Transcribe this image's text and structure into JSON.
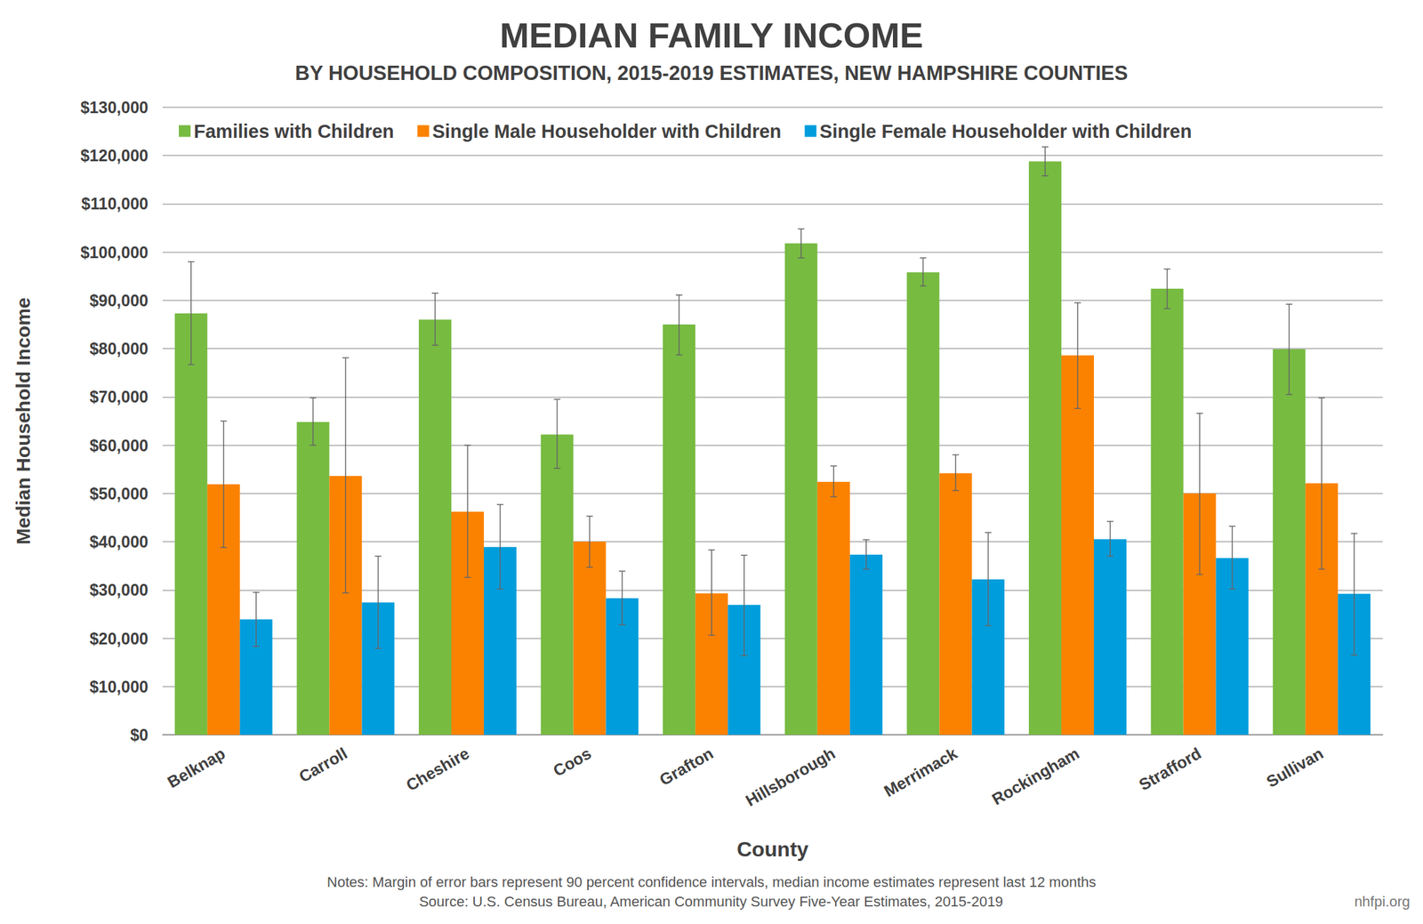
{
  "chart_data": {
    "type": "bar",
    "title": "MEDIAN FAMILY INCOME",
    "subtitle": "BY HOUSEHOLD COMPOSITION, 2015-2019 ESTIMATES, NEW HAMPSHIRE COUNTIES",
    "x_label": "County",
    "y_label": "Median Household Income",
    "notes": "Notes: Margin of error bars represent 90 percent confidence intervals, median income estimates represent last 12 months",
    "source": "Source: U.S. Census Bureau, American Community Survey Five-Year Estimates, 2015-2019",
    "credit": "nhfpi.org",
    "categories": [
      "Belknap",
      "Carroll",
      "Cheshire",
      "Coos",
      "Grafton",
      "Hillsborough",
      "Merrimack",
      "Rockingham",
      "Strafford",
      "Sullivan"
    ],
    "series": [
      {
        "name": "Families with Children",
        "color": "#77bb41",
        "values": [
          87300,
          64800,
          86000,
          62200,
          85000,
          101800,
          95800,
          118800,
          92400,
          79900
        ],
        "error_low": [
          76700,
          60000,
          80700,
          55200,
          78700,
          98800,
          93000,
          115800,
          88300,
          70500
        ],
        "error_high": [
          98000,
          69800,
          91500,
          69500,
          91100,
          104800,
          98800,
          121800,
          96500,
          89200
        ]
      },
      {
        "name": "Single Male Householder with Children",
        "color": "#fb8200",
        "values": [
          51900,
          53600,
          46200,
          40000,
          29300,
          52400,
          54200,
          78600,
          50000,
          52100
        ],
        "error_low": [
          38800,
          29400,
          32600,
          34700,
          20600,
          49300,
          50600,
          67600,
          33200,
          34300
        ],
        "error_high": [
          65000,
          78100,
          60000,
          45300,
          38300,
          55700,
          58000,
          89500,
          66600,
          69800
        ]
      },
      {
        "name": "Single Female Householder with Children",
        "color": "#009ddc",
        "values": [
          23900,
          27400,
          38900,
          28300,
          26900,
          37300,
          32200,
          40500,
          36600,
          29200
        ],
        "error_low": [
          18300,
          17900,
          30200,
          22800,
          16400,
          34300,
          22600,
          37000,
          30200,
          16500
        ],
        "error_high": [
          29500,
          37000,
          47700,
          33900,
          37200,
          40400,
          41900,
          44200,
          43200,
          41700
        ]
      }
    ],
    "ylim": [
      0,
      130000
    ],
    "yticks": [
      {
        "value": 0,
        "label": "$0"
      },
      {
        "value": 10000,
        "label": "$10,000"
      },
      {
        "value": 20000,
        "label": "$20,000"
      },
      {
        "value": 30000,
        "label": "$30,000"
      },
      {
        "value": 40000,
        "label": "$40,000"
      },
      {
        "value": 50000,
        "label": "$50,000"
      },
      {
        "value": 60000,
        "label": "$60,000"
      },
      {
        "value": 70000,
        "label": "$70,000"
      },
      {
        "value": 80000,
        "label": "$80,000"
      },
      {
        "value": 90000,
        "label": "$90,000"
      },
      {
        "value": 100000,
        "label": "$100,000"
      },
      {
        "value": 110000,
        "label": "$110,000"
      },
      {
        "value": 120000,
        "label": "$120,000"
      },
      {
        "value": 130000,
        "label": "$130,000"
      }
    ],
    "grid": true,
    "legend": "top"
  }
}
